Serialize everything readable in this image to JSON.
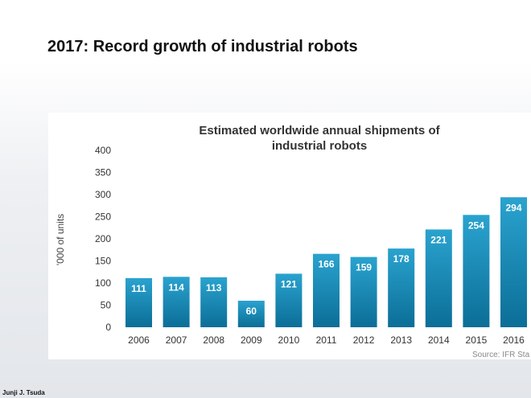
{
  "slide": {
    "title": "2017: Record growth of industrial robots",
    "footer_author": "Junji J. Tsuda"
  },
  "chart_data": {
    "type": "bar",
    "title_lines": [
      "Estimated worldwide annual shipments of",
      "industrial robots"
    ],
    "ylabel": "'000 of units",
    "xlabel": "",
    "categories": [
      "2006",
      "2007",
      "2008",
      "2009",
      "2010",
      "2011",
      "2012",
      "2013",
      "2014",
      "2015",
      "2016"
    ],
    "values": [
      111,
      114,
      113,
      60,
      121,
      166,
      159,
      178,
      221,
      254,
      294
    ],
    "data_labels": [
      "111",
      "114",
      "113",
      "60",
      "121",
      "166",
      "159",
      "178",
      "221",
      "254",
      "294"
    ],
    "ylim": [
      0,
      400
    ],
    "yticks": [
      0,
      50,
      100,
      150,
      200,
      250,
      300,
      350,
      400
    ],
    "grid": false,
    "source": "Source: IFR Sta",
    "colors": {
      "bar_top": "#2aa3cf",
      "bar_bottom": "#0b6e97",
      "label": "#ffffff",
      "axis_text": "#333333"
    }
  }
}
